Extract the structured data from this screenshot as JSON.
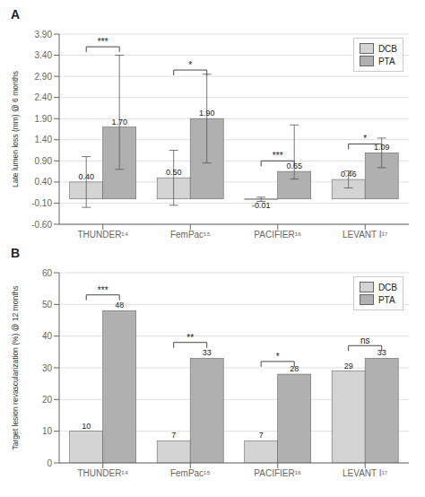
{
  "chart_data": [
    {
      "type": "bar",
      "title": "A",
      "ylabel": "Late lumen loss (mm) @ 6 months",
      "categories": [
        "THUNDER¹⁴",
        "FemPac¹⁵",
        "PACIFIER¹⁶",
        "LEVANT I¹⁷"
      ],
      "series": [
        {
          "name": "DCB",
          "color": "#d4d4d4",
          "values": [
            0.4,
            0.5,
            -0.01,
            0.46
          ],
          "value_labels": [
            "0.40",
            "0.50",
            "-0.01",
            "0.46"
          ],
          "error_low": [
            0.6,
            0.65,
            0.05,
            0.2
          ],
          "error_high": [
            0.6,
            0.65,
            0.05,
            0.2
          ]
        },
        {
          "name": "PTA",
          "color": "#b0b0b0",
          "values": [
            1.7,
            1.9,
            0.65,
            1.09
          ],
          "value_labels": [
            "1.70",
            "1.90",
            "0.65",
            "1.09"
          ],
          "error_low": [
            1.0,
            1.05,
            0.18,
            0.35
          ],
          "error_high": [
            1.7,
            1.05,
            1.1,
            0.35
          ]
        }
      ],
      "ylim": [
        -0.6,
        3.9
      ],
      "yticks": [
        {
          "value": -0.6,
          "label": "-0.60"
        },
        {
          "value": -0.1,
          "label": "-0.10"
        },
        {
          "value": 0.4,
          "label": "0.40"
        },
        {
          "value": 0.9,
          "label": "0.90"
        },
        {
          "value": 1.4,
          "label": "1.40"
        },
        {
          "value": 1.9,
          "label": "1.90"
        },
        {
          "value": 2.4,
          "label": "2.40"
        },
        {
          "value": 2.9,
          "label": "2.90"
        },
        {
          "value": 3.4,
          "label": "3.40"
        },
        {
          "value": 3.9,
          "label": "3.90"
        }
      ],
      "grid": true,
      "legend": "upper right",
      "data_labels": true,
      "annotations": [
        {
          "text": "***",
          "x": "THUNDER¹⁴",
          "y": 3.6
        },
        {
          "text": "*",
          "x": "FemPac¹⁵",
          "y": 3.05
        },
        {
          "text": "***",
          "x": "PACIFIER¹⁶",
          "y": 0.9
        },
        {
          "text": "*",
          "x": "LEVANT I¹⁷",
          "y": 1.3
        }
      ]
    },
    {
      "type": "bar",
      "title": "B",
      "ylabel": "Target lesion revascularization (%) @ 12 months",
      "categories": [
        "THUNDER¹⁴",
        "FemPac¹⁵",
        "PACIFIER¹⁶",
        "LEVANT I¹⁷"
      ],
      "series": [
        {
          "name": "DCB",
          "color": "#d4d4d4",
          "values": [
            10,
            7,
            7,
            29
          ]
        },
        {
          "name": "PTA",
          "color": "#b0b0b0",
          "values": [
            48,
            33,
            28,
            33
          ]
        }
      ],
      "ylim": [
        0,
        60
      ],
      "yticks": [
        0,
        10,
        20,
        30,
        40,
        50,
        60
      ],
      "grid": true,
      "legend": "upper right",
      "data_labels": true,
      "annotations": [
        {
          "text": "***",
          "x": "THUNDER¹⁴",
          "y": 53
        },
        {
          "text": "**",
          "x": "FemPac¹⁵",
          "y": 38
        },
        {
          "text": "*",
          "x": "PACIFIER¹⁶",
          "y": 32
        },
        {
          "text": "ns",
          "x": "LEVANT I¹⁷",
          "y": 37
        }
      ]
    }
  ]
}
